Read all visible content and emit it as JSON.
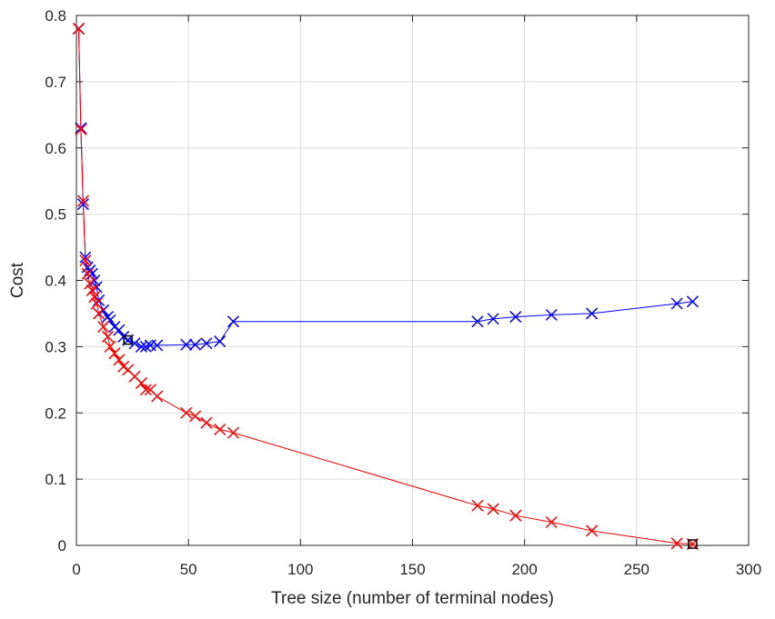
{
  "chart_data": {
    "type": "line",
    "title": "",
    "xlabel": "Tree size (number of terminal nodes)",
    "ylabel": "Cost",
    "xlim": [
      0,
      300
    ],
    "ylim": [
      0,
      0.8
    ],
    "xticks": [
      0,
      50,
      100,
      150,
      200,
      250,
      300
    ],
    "yticks": [
      0,
      0.1,
      0.2,
      0.3,
      0.4,
      0.5,
      0.6,
      0.7,
      0.8
    ],
    "xtick_labels": [
      "0",
      "50",
      "100",
      "150",
      "200",
      "250",
      "300"
    ],
    "ytick_labels": [
      "0",
      "0.1",
      "0.2",
      "0.3",
      "0.4",
      "0.5",
      "0.6",
      "0.7",
      "0.8"
    ],
    "grid": true,
    "marker": "x",
    "series": [
      {
        "color": "#0000ff",
        "x": [
          1,
          2,
          3,
          4,
          5,
          6,
          7,
          8,
          9,
          10,
          12,
          14,
          15,
          17,
          19,
          21,
          23,
          26,
          29,
          31,
          33,
          36,
          49,
          53,
          58,
          64,
          70,
          179,
          186,
          196,
          212,
          230,
          268,
          275
        ],
        "y": [
          0.78,
          0.63,
          0.515,
          0.435,
          0.42,
          0.415,
          0.41,
          0.4,
          0.39,
          0.37,
          0.355,
          0.345,
          0.34,
          0.33,
          0.325,
          0.315,
          0.31,
          0.305,
          0.3,
          0.3,
          0.302,
          0.302,
          0.303,
          0.303,
          0.305,
          0.308,
          0.338,
          0.338,
          0.342,
          0.345,
          0.348,
          0.35,
          0.365,
          0.368
        ],
        "best": {
          "x": 23,
          "y": 0.31
        }
      },
      {
        "color": "#ff0000",
        "x": [
          1,
          2,
          3,
          4,
          5,
          6,
          7,
          8,
          9,
          10,
          12,
          14,
          15,
          17,
          19,
          21,
          23,
          26,
          29,
          31,
          33,
          36,
          49,
          53,
          58,
          64,
          70,
          179,
          186,
          196,
          212,
          230,
          268,
          275
        ],
        "y": [
          0.78,
          0.628,
          0.52,
          0.43,
          0.41,
          0.395,
          0.385,
          0.375,
          0.365,
          0.35,
          0.33,
          0.315,
          0.3,
          0.29,
          0.28,
          0.27,
          0.265,
          0.255,
          0.245,
          0.235,
          0.235,
          0.225,
          0.2,
          0.195,
          0.185,
          0.175,
          0.17,
          0.06,
          0.055,
          0.045,
          0.035,
          0.022,
          0.003,
          0.002
        ],
        "best": {
          "x": 275,
          "y": 0.002
        }
      }
    ]
  }
}
